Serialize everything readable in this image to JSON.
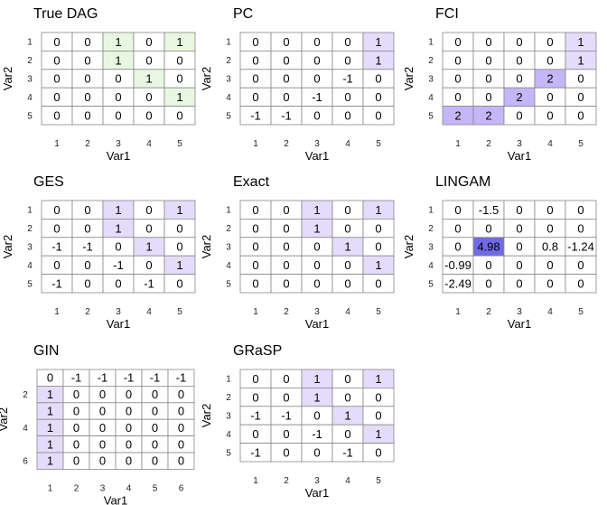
{
  "colors": {
    "positive_dag": "#e8f7e1",
    "light_purple": "#e5dcfb",
    "mid_purple": "#c5b6f7",
    "dark_purple": "#6f6ae8",
    "grid_line": "#888888"
  },
  "chart_data": [
    {
      "type": "heatmap",
      "title": "True DAG",
      "xlabel": "Var1",
      "ylabel": "Var2",
      "xticks": [
        "1",
        "2",
        "3",
        "4",
        "5"
      ],
      "yticks": [
        "1",
        "2",
        "3",
        "4",
        "5"
      ],
      "values": [
        [
          "0",
          "0",
          "1",
          "0",
          "1"
        ],
        [
          "0",
          "0",
          "1",
          "0",
          "0"
        ],
        [
          "0",
          "0",
          "0",
          "1",
          "0"
        ],
        [
          "0",
          "0",
          "0",
          "0",
          "1"
        ],
        [
          "0",
          "0",
          "0",
          "0",
          "0"
        ]
      ],
      "highlight_color": "#e8f7e1"
    },
    {
      "type": "heatmap",
      "title": "PC",
      "xlabel": "Var1",
      "ylabel": "Var2",
      "xticks": [
        "1",
        "2",
        "3",
        "4",
        "5"
      ],
      "yticks": [
        "1",
        "2",
        "3",
        "4",
        "5"
      ],
      "values": [
        [
          "0",
          "0",
          "0",
          "0",
          "1"
        ],
        [
          "0",
          "0",
          "0",
          "0",
          "1"
        ],
        [
          "0",
          "0",
          "0",
          "-1",
          "0"
        ],
        [
          "0",
          "0",
          "-1",
          "0",
          "0"
        ],
        [
          "-1",
          "-1",
          "0",
          "0",
          "0"
        ]
      ]
    },
    {
      "type": "heatmap",
      "title": "FCI",
      "xlabel": "Var1",
      "ylabel": "Var2",
      "xticks": [
        "1",
        "2",
        "3",
        "4",
        "5"
      ],
      "yticks": [
        "1",
        "2",
        "3",
        "4",
        "5"
      ],
      "values": [
        [
          "0",
          "0",
          "0",
          "0",
          "1"
        ],
        [
          "0",
          "0",
          "0",
          "0",
          "1"
        ],
        [
          "0",
          "0",
          "0",
          "2",
          "0"
        ],
        [
          "0",
          "0",
          "2",
          "0",
          "0"
        ],
        [
          "2",
          "2",
          "0",
          "0",
          "0"
        ]
      ]
    },
    {
      "type": "heatmap",
      "title": "GES",
      "xlabel": "Var1",
      "ylabel": "Var2",
      "xticks": [
        "1",
        "2",
        "3",
        "4",
        "5"
      ],
      "yticks": [
        "1",
        "2",
        "3",
        "4",
        "5"
      ],
      "values": [
        [
          "0",
          "0",
          "1",
          "0",
          "1"
        ],
        [
          "0",
          "0",
          "1",
          "0",
          "0"
        ],
        [
          "-1",
          "-1",
          "0",
          "1",
          "0"
        ],
        [
          "0",
          "0",
          "-1",
          "0",
          "1"
        ],
        [
          "-1",
          "0",
          "0",
          "-1",
          "0"
        ]
      ]
    },
    {
      "type": "heatmap",
      "title": "Exact",
      "xlabel": "Var1",
      "ylabel": "Var2",
      "xticks": [
        "1",
        "2",
        "3",
        "4",
        "5"
      ],
      "yticks": [
        "1",
        "2",
        "3",
        "4",
        "5"
      ],
      "values": [
        [
          "0",
          "0",
          "1",
          "0",
          "1"
        ],
        [
          "0",
          "0",
          "1",
          "0",
          "0"
        ],
        [
          "0",
          "0",
          "0",
          "1",
          "0"
        ],
        [
          "0",
          "0",
          "0",
          "0",
          "1"
        ],
        [
          "0",
          "0",
          "0",
          "0",
          "0"
        ]
      ]
    },
    {
      "type": "heatmap",
      "title": "LINGAM",
      "xlabel": "Var1",
      "ylabel": "Var2",
      "xticks": [
        "1",
        "2",
        "3",
        "4",
        "5"
      ],
      "yticks": [
        "1",
        "2",
        "3",
        "4",
        "5"
      ],
      "values": [
        [
          "0",
          "-1.5",
          "0",
          "0",
          "0"
        ],
        [
          "0",
          "0",
          "0",
          "0",
          "0"
        ],
        [
          "0",
          "4.98",
          "0",
          "0.8",
          "-1.24"
        ],
        [
          "-0.99",
          "0",
          "0",
          "0",
          "0"
        ],
        [
          "-2.49",
          "0",
          "0",
          "0",
          "0"
        ]
      ]
    },
    {
      "type": "heatmap",
      "title": "GIN",
      "xlabel": "Var1",
      "ylabel": "Var2",
      "xticks": [
        "1",
        "2",
        "3",
        "4",
        "5",
        "6"
      ],
      "yticks": [
        "",
        "2",
        "",
        "4",
        "",
        "6"
      ],
      "values": [
        [
          "0",
          "-1",
          "-1",
          "-1",
          "-1",
          "-1"
        ],
        [
          "1",
          "0",
          "0",
          "0",
          "0",
          "0"
        ],
        [
          "1",
          "0",
          "0",
          "0",
          "0",
          "0"
        ],
        [
          "1",
          "0",
          "0",
          "0",
          "0",
          "0"
        ],
        [
          "1",
          "0",
          "0",
          "0",
          "0",
          "0"
        ],
        [
          "1",
          "0",
          "0",
          "0",
          "0",
          "0"
        ]
      ]
    },
    {
      "type": "heatmap",
      "title": "GRaSP",
      "xlabel": "Var1",
      "ylabel": "Var2",
      "xticks": [
        "1",
        "2",
        "3",
        "4",
        "5"
      ],
      "yticks": [
        "1",
        "2",
        "3",
        "4",
        "5"
      ],
      "values": [
        [
          "0",
          "0",
          "1",
          "0",
          "1"
        ],
        [
          "0",
          "0",
          "1",
          "0",
          "0"
        ],
        [
          "-1",
          "-1",
          "0",
          "1",
          "0"
        ],
        [
          "0",
          "0",
          "-1",
          "0",
          "1"
        ],
        [
          "-1",
          "0",
          "0",
          "-1",
          "0"
        ]
      ]
    }
  ]
}
